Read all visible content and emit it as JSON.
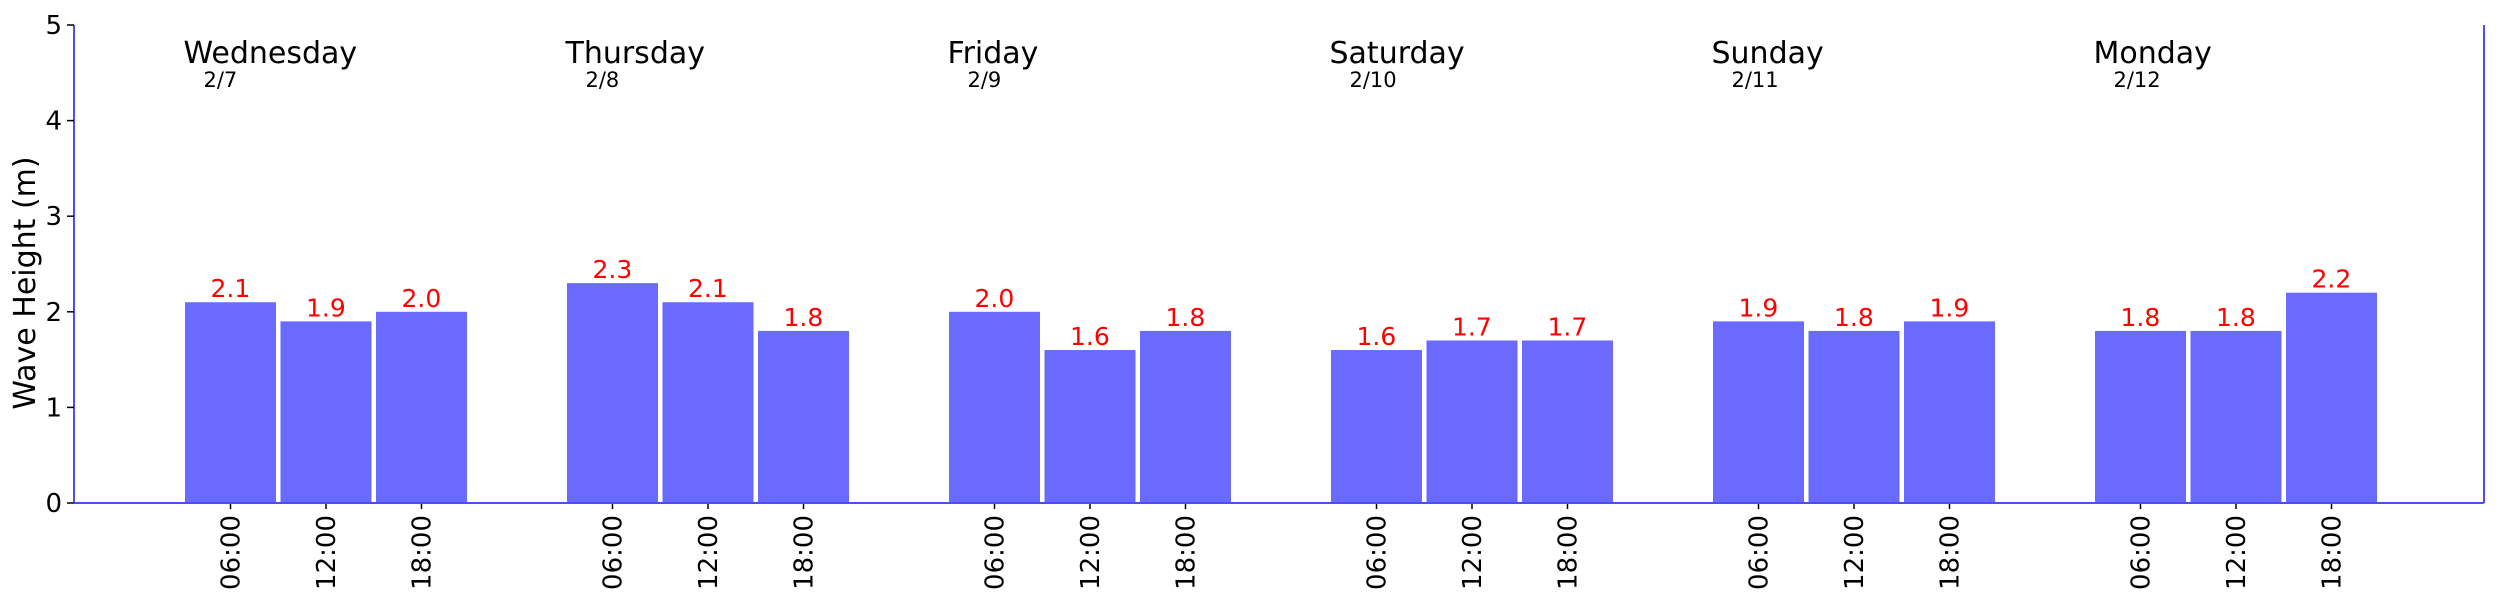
{
  "chart_data": {
    "type": "bar",
    "title": "",
    "xlabel": "",
    "ylabel": "Wave Height (m)",
    "ylim": [
      0,
      5
    ],
    "yticks": [
      "0",
      "1",
      "2",
      "3",
      "4",
      "5"
    ],
    "grid": false,
    "bar_color": "#6a6aff",
    "axis_color": "#4d4dff",
    "value_label_color": "#ff0000",
    "days": [
      {
        "day": "Wednesday",
        "date": "2/7",
        "times": [
          "06:00",
          "12:00",
          "18:00"
        ],
        "values": [
          2.1,
          1.9,
          2.0
        ]
      },
      {
        "day": "Thursday",
        "date": "2/8",
        "times": [
          "06:00",
          "12:00",
          "18:00"
        ],
        "values": [
          2.3,
          2.1,
          1.8
        ]
      },
      {
        "day": "Friday",
        "date": "2/9",
        "times": [
          "06:00",
          "12:00",
          "18:00"
        ],
        "values": [
          2.0,
          1.6,
          1.8
        ]
      },
      {
        "day": "Saturday",
        "date": "2/10",
        "times": [
          "06:00",
          "12:00",
          "18:00"
        ],
        "values": [
          1.6,
          1.7,
          1.7
        ]
      },
      {
        "day": "Sunday",
        "date": "2/11",
        "times": [
          "06:00",
          "12:00",
          "18:00"
        ],
        "values": [
          1.9,
          1.8,
          1.9
        ]
      },
      {
        "day": "Monday",
        "date": "2/12",
        "times": [
          "06:00",
          "12:00",
          "18:00"
        ],
        "values": [
          1.8,
          1.8,
          2.2
        ]
      }
    ]
  }
}
